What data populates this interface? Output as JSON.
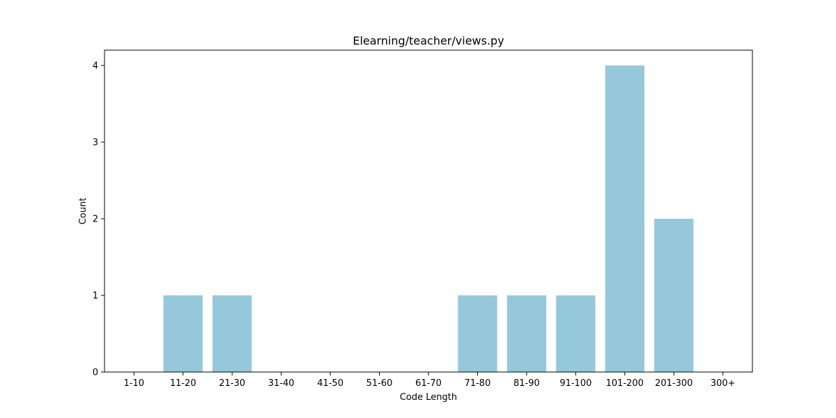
{
  "chart_data": {
    "type": "bar",
    "title": "Elearning/teacher/views.py",
    "xlabel": "Code Length",
    "ylabel": "Count",
    "categories": [
      "1-10",
      "11-20",
      "21-30",
      "31-40",
      "41-50",
      "51-60",
      "61-70",
      "71-80",
      "81-90",
      "91-100",
      "101-200",
      "201-300",
      "300+"
    ],
    "values": [
      0,
      1,
      1,
      0,
      0,
      0,
      0,
      1,
      1,
      1,
      4,
      2,
      0
    ],
    "ylim": [
      0,
      4.2
    ],
    "yticks": [
      0,
      1,
      2,
      3,
      4
    ],
    "bar_color": "#96c8dc",
    "grid": false,
    "legend": "none"
  }
}
